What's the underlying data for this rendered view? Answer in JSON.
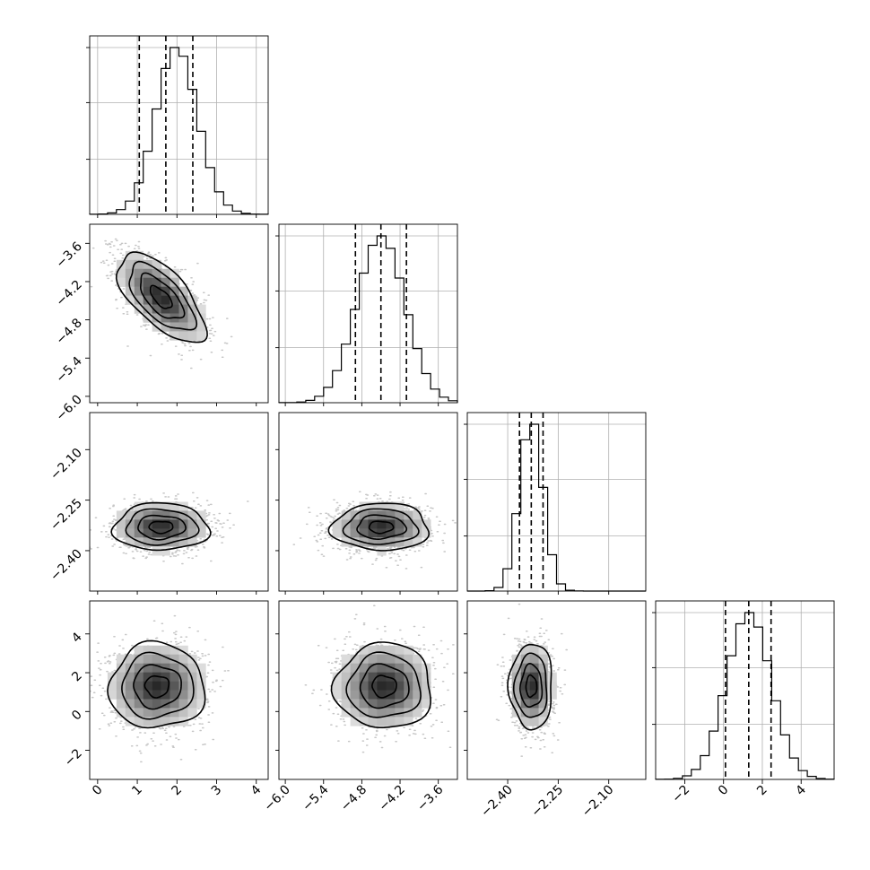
{
  "chart_data": {
    "type": "corner",
    "title": "",
    "parameters": [
      {
        "label": "",
        "range": [
          -0.2,
          4.3
        ],
        "ticks": [
          0,
          1,
          2,
          3,
          4
        ],
        "tick_labels": [
          "0",
          "1",
          "2",
          "3",
          "4"
        ],
        "quantiles": [
          1.05,
          1.72,
          2.4
        ],
        "mean": 1.72,
        "sd": 0.6,
        "skew": 0.35
      },
      {
        "label": "",
        "range": [
          -6.1,
          -3.3
        ],
        "ticks": [
          -6.0,
          -5.4,
          -4.8,
          -4.2,
          -3.6
        ],
        "tick_labels": [
          "−6.0",
          "−5.4",
          "−4.8",
          "−4.2",
          "−3.6"
        ],
        "quantiles": [
          -4.9,
          -4.5,
          -4.1
        ],
        "mean": -4.5,
        "sd": 0.38,
        "skew": 0
      },
      {
        "label": "",
        "range": [
          -2.52,
          -1.99
        ],
        "ticks": [
          -2.4,
          -2.25,
          -2.1
        ],
        "tick_labels": [
          "−2.40",
          "−2.25",
          "−2.10"
        ],
        "quantiles": [
          -2.365,
          -2.33,
          -2.295
        ],
        "mean": -2.33,
        "sd": 0.035,
        "skew": 0
      },
      {
        "label": "",
        "range": [
          -3.5,
          5.7
        ],
        "ticks": [
          -2,
          0,
          2,
          4
        ],
        "tick_labels": [
          "−2",
          "0",
          "2",
          "4"
        ],
        "quantiles": [
          0.1,
          1.3,
          2.45
        ],
        "mean": 1.3,
        "sd": 1.15,
        "skew": 0
      }
    ],
    "pairs": [
      {
        "x": 0,
        "y": 1,
        "center": [
          1.6,
          -4.45
        ],
        "sd": [
          0.55,
          0.35
        ],
        "rho": -0.65
      },
      {
        "x": 0,
        "y": 2,
        "center": [
          1.6,
          -2.33
        ],
        "sd": [
          0.6,
          0.035
        ],
        "rho": 0
      },
      {
        "x": 1,
        "y": 2,
        "center": [
          -4.5,
          -2.33
        ],
        "sd": [
          0.38,
          0.035
        ],
        "rho": 0
      },
      {
        "x": 0,
        "y": 3,
        "center": [
          1.5,
          1.3
        ],
        "sd": [
          0.6,
          1.1
        ],
        "rho": 0
      },
      {
        "x": 1,
        "y": 3,
        "center": [
          -4.45,
          1.3
        ],
        "sd": [
          0.38,
          1.1
        ],
        "rho": 0
      },
      {
        "x": 2,
        "y": 3,
        "center": [
          -2.33,
          1.3
        ],
        "sd": [
          0.032,
          1.1
        ],
        "rho": 0
      }
    ],
    "contour_levels_sigma": [
      0.5,
      1.0,
      1.5,
      2.0
    ],
    "grid": true
  }
}
